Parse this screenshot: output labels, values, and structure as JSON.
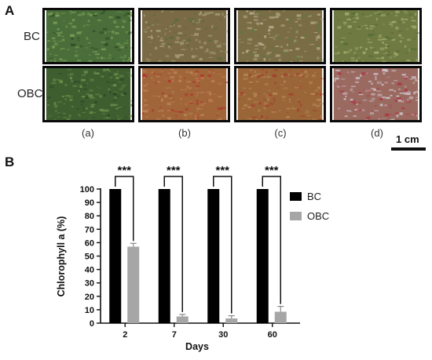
{
  "panels": {
    "a": "A",
    "b": "B"
  },
  "photo_grid": {
    "rows": [
      {
        "label": "BC",
        "cells": [
          "bc-a",
          "bc-b",
          "bc-c",
          "bc-d"
        ]
      },
      {
        "label": "OBC",
        "cells": [
          "obc-a",
          "obc-b",
          "obc-c",
          "obc-d"
        ]
      }
    ],
    "columns": [
      "(a)",
      "(b)",
      "(c)",
      "(d)"
    ],
    "textures": {
      "bc-a": {
        "base": "#4a6e3a",
        "fleck": "#7fa05a",
        "spot": "#2f4a26"
      },
      "bc-b": {
        "base": "#7a6a45",
        "fleck": "#a8a07a",
        "spot": "#556b3a"
      },
      "bc-c": {
        "base": "#7a6c45",
        "fleck": "#b8b090",
        "spot": "#5f7a3e"
      },
      "bc-d": {
        "base": "#6e7a42",
        "fleck": "#a6b070",
        "spot": "#4e6a34"
      },
      "obc-a": {
        "base": "#3e5e30",
        "fleck": "#6e944c",
        "spot": "#2a4022"
      },
      "obc-b": {
        "base": "#a0663a",
        "fleck": "#c0865a",
        "spot": "#b0302a"
      },
      "obc-c": {
        "base": "#9a6638",
        "fleck": "#b88a58",
        "spot": "#a8342a"
      },
      "obc-d": {
        "base": "#9a6a60",
        "fleck": "#d0c8d0",
        "spot": "#b03040"
      }
    },
    "scale_bar": "1 cm"
  },
  "chart_data": {
    "type": "bar",
    "categories": [
      "2",
      "7",
      "30",
      "60"
    ],
    "series": [
      {
        "name": "BC",
        "color": "#000000",
        "values": [
          100,
          100,
          100,
          100
        ],
        "errors": [
          0,
          0,
          0,
          0
        ]
      },
      {
        "name": "OBC",
        "color": "#a6a6a6",
        "values": [
          57,
          5,
          3.5,
          8.5
        ],
        "errors": [
          2.5,
          1.5,
          2,
          4
        ]
      }
    ],
    "xlabel": "Days",
    "ylabel": "Chlorophyll a (%)",
    "ylim": [
      0,
      100
    ],
    "yticks": [
      0,
      10,
      20,
      30,
      40,
      50,
      60,
      70,
      80,
      90,
      100
    ],
    "significance": [
      "***",
      "***",
      "***",
      "***"
    ],
    "legend": "right"
  }
}
